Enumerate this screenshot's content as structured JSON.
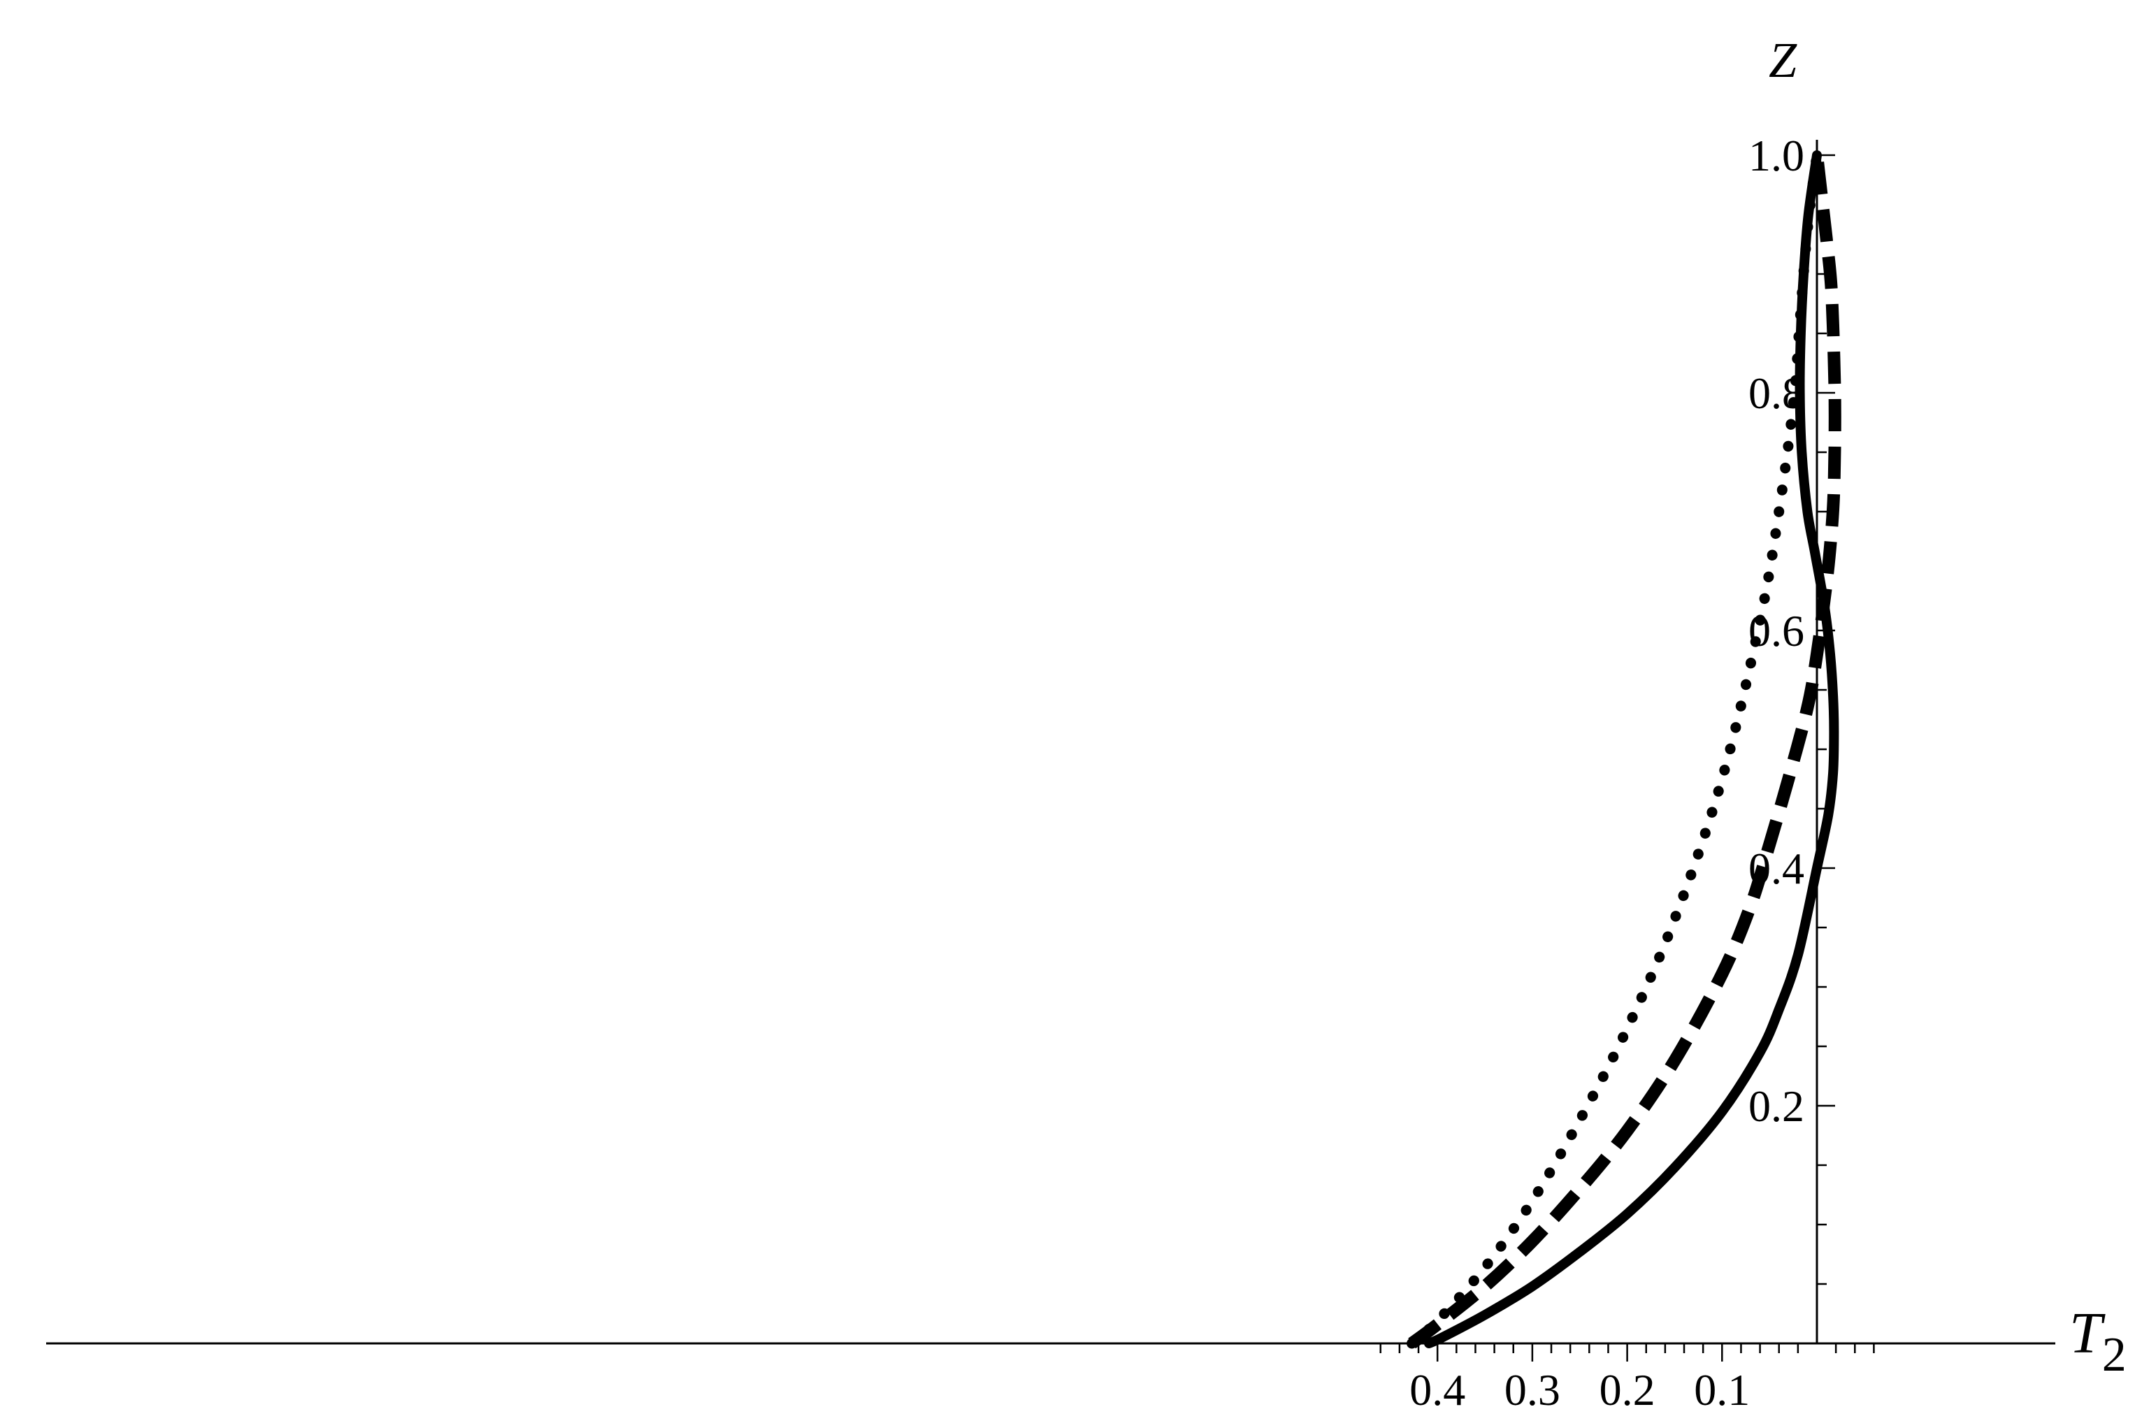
{
  "chart_data": {
    "type": "line",
    "xlabel": "T",
    "xlabel_sub": "2",
    "ylabel": "Z",
    "x_reversed": true,
    "xlim": [
      -0.062,
      0.47
    ],
    "ylim": [
      0,
      1.0
    ],
    "x_ticks": [
      0.4,
      0.3,
      0.2,
      0.1
    ],
    "x_tick_labels": [
      "0.4",
      "0.3",
      "0.2",
      "0.1"
    ],
    "y_ticks": [
      0.2,
      0.4,
      0.6,
      0.8,
      1.0
    ],
    "y_tick_labels": [
      "0.2",
      "0.4",
      "0.6",
      "0.8",
      "1.0"
    ],
    "grid": false,
    "series": [
      {
        "style": "solid",
        "color": "#000000",
        "points": [
          [
            0.409,
            0.0
          ],
          [
            0.395,
            0.005
          ],
          [
            0.35,
            0.024
          ],
          [
            0.3,
            0.048
          ],
          [
            0.25,
            0.077
          ],
          [
            0.2,
            0.109
          ],
          [
            0.15,
            0.148
          ],
          [
            0.1,
            0.195
          ],
          [
            0.06,
            0.245
          ],
          [
            0.04,
            0.281
          ],
          [
            0.02,
            0.327
          ],
          [
            0.0,
            0.4
          ],
          [
            -0.012,
            0.445
          ],
          [
            -0.017,
            0.48
          ],
          [
            -0.018,
            0.515
          ],
          [
            -0.017,
            0.545
          ],
          [
            -0.014,
            0.58
          ],
          [
            -0.008,
            0.62
          ],
          [
            0.002,
            0.665
          ],
          [
            0.01,
            0.7
          ],
          [
            0.016,
            0.75
          ],
          [
            0.018,
            0.8
          ],
          [
            0.017,
            0.85
          ],
          [
            0.014,
            0.9
          ],
          [
            0.009,
            0.95
          ],
          [
            0.0,
            1.0
          ]
        ]
      },
      {
        "style": "dashed",
        "color": "#000000",
        "points": [
          [
            0.427,
            0.0
          ],
          [
            0.4,
            0.016
          ],
          [
            0.35,
            0.048
          ],
          [
            0.3,
            0.086
          ],
          [
            0.25,
            0.13
          ],
          [
            0.2,
            0.179
          ],
          [
            0.15,
            0.238
          ],
          [
            0.1,
            0.311
          ],
          [
            0.07,
            0.368
          ],
          [
            0.05,
            0.42
          ],
          [
            0.03,
            0.475
          ],
          [
            0.01,
            0.535
          ],
          [
            0.0,
            0.58
          ],
          [
            -0.01,
            0.64
          ],
          [
            -0.015,
            0.68
          ],
          [
            -0.018,
            0.72
          ],
          [
            -0.019,
            0.78
          ],
          [
            -0.018,
            0.83
          ],
          [
            -0.015,
            0.89
          ],
          [
            -0.01,
            0.93
          ],
          [
            -0.005,
            0.965
          ],
          [
            0.0,
            1.0
          ]
        ]
      },
      {
        "style": "dotted",
        "color": "#000000",
        "points": [
          [
            0.427,
            0.0
          ],
          [
            0.4,
            0.019
          ],
          [
            0.35,
            0.064
          ],
          [
            0.3,
            0.12
          ],
          [
            0.25,
            0.188
          ],
          [
            0.2,
            0.265
          ],
          [
            0.15,
            0.357
          ],
          [
            0.1,
            0.475
          ],
          [
            0.06,
            0.608
          ],
          [
            0.04,
            0.7
          ],
          [
            0.025,
            0.79
          ],
          [
            0.018,
            0.86
          ],
          [
            0.012,
            0.92
          ],
          [
            0.006,
            0.965
          ],
          [
            0.0,
            1.0
          ]
        ]
      }
    ]
  }
}
